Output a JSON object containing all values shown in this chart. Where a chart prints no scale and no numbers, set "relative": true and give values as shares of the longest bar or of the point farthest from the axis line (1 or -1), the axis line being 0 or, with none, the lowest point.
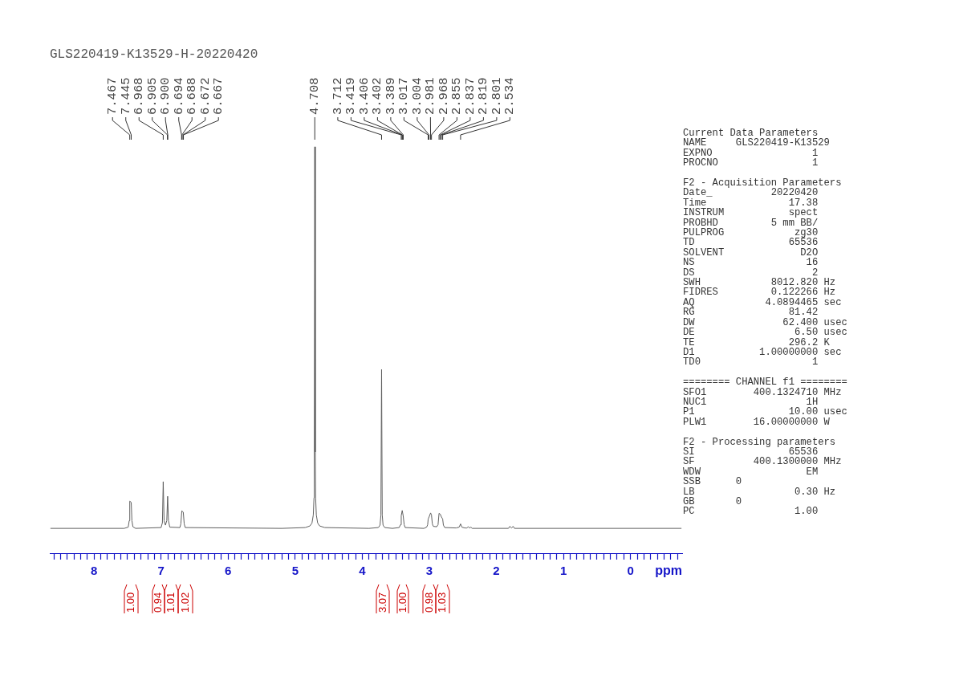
{
  "chart_data": {
    "type": "line",
    "title": "GLS220419-K13529-H-20220420",
    "xlabel": "ppm",
    "relative": true,
    "color": "#606060",
    "xlim": [
      8.66,
      -0.77
    ],
    "xticks": [
      {
        "value": 8.6,
        "label": null
      },
      {
        "value": 8.5,
        "label": null
      },
      {
        "value": 8.4,
        "label": null
      },
      {
        "value": 8.3,
        "label": null
      },
      {
        "value": 8.2,
        "label": null
      },
      {
        "value": 8.1,
        "label": null
      },
      8,
      {
        "value": 7.9,
        "label": null
      },
      {
        "value": 7.8,
        "label": null
      },
      {
        "value": 7.7,
        "label": null
      },
      {
        "value": 7.6,
        "label": null
      },
      {
        "value": 7.5,
        "label": null
      },
      {
        "value": 7.4,
        "label": null
      },
      {
        "value": 7.3,
        "label": null
      },
      {
        "value": 7.2,
        "label": null
      },
      {
        "value": 7.1,
        "label": null
      },
      7,
      {
        "value": 6.9,
        "label": null
      },
      {
        "value": 6.8,
        "label": null
      },
      {
        "value": 6.7,
        "label": null
      },
      {
        "value": 6.6,
        "label": null
      },
      {
        "value": 6.5,
        "label": null
      },
      {
        "value": 6.4,
        "label": null
      },
      {
        "value": 6.3,
        "label": null
      },
      {
        "value": 6.2,
        "label": null
      },
      {
        "value": 6.1,
        "label": null
      },
      6,
      {
        "value": 5.9,
        "label": null
      },
      {
        "value": 5.8,
        "label": null
      },
      {
        "value": 5.7,
        "label": null
      },
      {
        "value": 5.6,
        "label": null
      },
      {
        "value": 5.5,
        "label": null
      },
      {
        "value": 5.4,
        "label": null
      },
      {
        "value": 5.3,
        "label": null
      },
      {
        "value": 5.2,
        "label": null
      },
      {
        "value": 5.1,
        "label": null
      },
      5,
      {
        "value": 4.9,
        "label": null
      },
      {
        "value": 4.8,
        "label": null
      },
      {
        "value": 4.7,
        "label": null
      },
      {
        "value": 4.6,
        "label": null
      },
      {
        "value": 4.5,
        "label": null
      },
      {
        "value": 4.4,
        "label": null
      },
      {
        "value": 4.3,
        "label": null
      },
      {
        "value": 4.2,
        "label": null
      },
      {
        "value": 4.1,
        "label": null
      },
      4,
      {
        "value": 3.9,
        "label": null
      },
      {
        "value": 3.8,
        "label": null
      },
      {
        "value": 3.7,
        "label": null
      },
      {
        "value": 3.6,
        "label": null
      },
      {
        "value": 3.5,
        "label": null
      },
      {
        "value": 3.4,
        "label": null
      },
      {
        "value": 3.3,
        "label": null
      },
      {
        "value": 3.2,
        "label": null
      },
      {
        "value": 3.1,
        "label": null
      },
      3,
      {
        "value": 2.9,
        "label": null
      },
      {
        "value": 2.8,
        "label": null
      },
      {
        "value": 2.7,
        "label": null
      },
      {
        "value": 2.6,
        "label": null
      },
      {
        "value": 2.5,
        "label": null
      },
      {
        "value": 2.4,
        "label": null
      },
      {
        "value": 2.3,
        "label": null
      },
      {
        "value": 2.2,
        "label": null
      },
      {
        "value": 2.1,
        "label": null
      },
      2,
      {
        "value": 1.9,
        "label": null
      },
      {
        "value": 1.8,
        "label": null
      },
      {
        "value": 1.7,
        "label": null
      },
      {
        "value": 1.6,
        "label": null
      },
      {
        "value": 1.5,
        "label": null
      },
      {
        "value": 1.4,
        "label": null
      },
      {
        "value": 1.3,
        "label": null
      },
      {
        "value": 1.2,
        "label": null
      },
      {
        "value": 1.1,
        "label": null
      },
      1,
      {
        "value": 0.9,
        "label": null
      },
      {
        "value": 0.8,
        "label": null
      },
      {
        "value": 0.7,
        "label": null
      },
      {
        "value": 0.6,
        "label": null
      },
      {
        "value": 0.5,
        "label": null
      },
      {
        "value": 0.4,
        "label": null
      },
      {
        "value": 0.3,
        "label": null
      },
      {
        "value": 0.2,
        "label": null
      },
      {
        "value": 0.1,
        "label": null
      },
      0,
      {
        "value": -0.1,
        "label": null
      },
      {
        "value": -0.2,
        "label": null
      },
      {
        "value": -0.3,
        "label": null
      },
      {
        "value": -0.4,
        "label": null
      },
      {
        "value": -0.5,
        "label": null
      },
      {
        "value": -0.6,
        "label": null
      },
      {
        "value": -0.7,
        "label": null
      }
    ],
    "x": [
      8.65,
      7.55,
      7.49,
      7.475,
      7.467,
      7.445,
      7.435,
      7.42,
      7.38,
      7.0,
      6.98,
      6.968,
      6.955,
      6.935,
      6.915,
      6.902,
      6.89,
      6.87,
      6.72,
      6.705,
      6.691,
      6.669,
      6.655,
      6.64,
      5.2,
      4.85,
      4.78,
      4.75,
      4.73,
      4.72,
      4.715,
      4.708,
      4.7,
      4.695,
      4.685,
      4.665,
      4.635,
      4.56,
      3.9,
      3.76,
      3.735,
      3.722,
      3.712,
      3.702,
      3.69,
      3.665,
      3.55,
      3.45,
      3.43,
      3.419,
      3.404,
      3.389,
      3.375,
      3.36,
      3.08,
      3.04,
      3.025,
      3.017,
      3.004,
      2.981,
      2.968,
      2.955,
      2.94,
      2.89,
      2.87,
      2.855,
      2.837,
      2.819,
      2.801,
      2.79,
      2.77,
      2.6,
      2.555,
      2.534,
      2.515,
      2.47,
      2.44,
      2.42,
      2.4,
      2.38,
      2.36,
      1.82,
      1.8,
      1.775,
      1.75,
      1.73,
      -0.76
    ],
    "values": [
      0.061,
      0.061,
      0.064,
      0.08,
      0.128,
      0.125,
      0.08,
      0.065,
      0.061,
      0.063,
      0.075,
      0.176,
      0.08,
      0.069,
      0.08,
      0.14,
      0.08,
      0.064,
      0.063,
      0.072,
      0.104,
      0.101,
      0.072,
      0.063,
      0.061,
      0.063,
      0.067,
      0.074,
      0.094,
      0.136,
      0.249,
      1,
      0.249,
      0.136,
      0.094,
      0.074,
      0.067,
      0.063,
      0.061,
      0.063,
      0.069,
      0.094,
      0.452,
      0.094,
      0.069,
      0.063,
      0.061,
      0.063,
      0.07,
      0.092,
      0.105,
      0.091,
      0.07,
      0.063,
      0.061,
      0.064,
      0.07,
      0.084,
      0.089,
      0.099,
      0.094,
      0.072,
      0.066,
      0.065,
      0.07,
      0.098,
      0.096,
      0.089,
      0.084,
      0.069,
      0.063,
      0.062,
      0.064,
      0.072,
      0.064,
      0.062,
      0.062,
      0.065,
      0.062,
      0.064,
      0.061,
      0.061,
      0.066,
      0.062,
      0.066,
      0.061,
      0.061
    ],
    "annotations": [
      {
        "text": "7.467",
        "x": 7.467
      },
      {
        "text": "7.445",
        "x": 7.445
      },
      {
        "text": "6.968",
        "x": 6.968
      },
      {
        "text": "6.905",
        "x": 6.905
      },
      {
        "text": "6.900",
        "x": 6.9
      },
      {
        "text": "6.694",
        "x": 6.694
      },
      {
        "text": "6.688",
        "x": 6.688
      },
      {
        "text": "6.672",
        "x": 6.672
      },
      {
        "text": "6.667",
        "x": 6.667
      },
      {
        "text": "4.708",
        "x": 4.708
      },
      {
        "text": "3.712",
        "x": 3.712
      },
      {
        "text": "3.419",
        "x": 3.419
      },
      {
        "text": "3.406",
        "x": 3.406
      },
      {
        "text": "3.402",
        "x": 3.402
      },
      {
        "text": "3.389",
        "x": 3.389
      },
      {
        "text": "3.017",
        "x": 3.017
      },
      {
        "text": "3.004",
        "x": 3.004
      },
      {
        "text": "2.981",
        "x": 2.981
      },
      {
        "text": "2.968",
        "x": 2.968
      },
      {
        "text": "2.855",
        "x": 2.855
      },
      {
        "text": "2.837",
        "x": 2.837
      },
      {
        "text": "2.819",
        "x": 2.819
      },
      {
        "text": "2.801",
        "x": 2.801
      },
      {
        "text": "2.534",
        "x": 2.534
      },
      "1.00",
      "0.94",
      "1.01",
      "1.02",
      "3.07",
      "1.00",
      "0.98",
      "1.03",
      "Current Data Parameters\nNAME     GLS220419-K13529\nEXPNO                 1\nPROCNO                1",
      "F2 - Acquisition Parameters\nDate_          20220420\nTime              17.38\nINSTRUM           spect\nPROBHD         5 mm BB/\nPULPROG            zg30\nTD                65536\nSOLVENT             D2O\nNS                   16\nDS                    2\nSWH            8012.820 Hz\nFIDRES         0.122266 Hz\nAQ            4.0894465 sec\nRG                81.42\nDW               62.400 usec\nDE                 6.50 usec\nTE                296.2 K\nD1           1.00000000 sec\nTD0                   1",
      "======== CHANNEL f1 ========\nSFO1        400.1324710 MHz\nNUC1                 1H\nP1                10.00 usec\nPLW1        16.00000000 W",
      "F2 - Processing parameters\nSI                65536\nSF          400.1300000 MHz\nWDW                  EM\nSSB      0\nLB                 0.30 Hz\nGB       0\nPC                 1.00"
    ]
  }
}
